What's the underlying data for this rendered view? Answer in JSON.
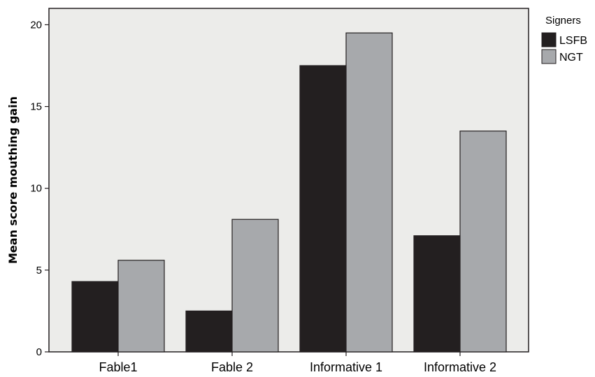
{
  "chart_data": {
    "type": "bar",
    "categories": [
      "Fable1",
      "Fable 2",
      "Informative 1",
      "Informative 2"
    ],
    "series": [
      {
        "name": "LSFB",
        "color": "#231f20",
        "values": [
          4.3,
          2.5,
          17.5,
          7.1
        ]
      },
      {
        "name": "NGT",
        "color": "#a7a9ac",
        "values": [
          5.6,
          8.1,
          19.5,
          13.5
        ]
      }
    ],
    "ylabel": "Mean score mouthing gain",
    "xlabel": "",
    "ylim": [
      0,
      21
    ],
    "yticks": [
      0,
      5,
      10,
      15,
      20
    ],
    "legend": {
      "title": "Signers",
      "placement": "right"
    },
    "plot_background": "#ececea",
    "grid": false
  }
}
